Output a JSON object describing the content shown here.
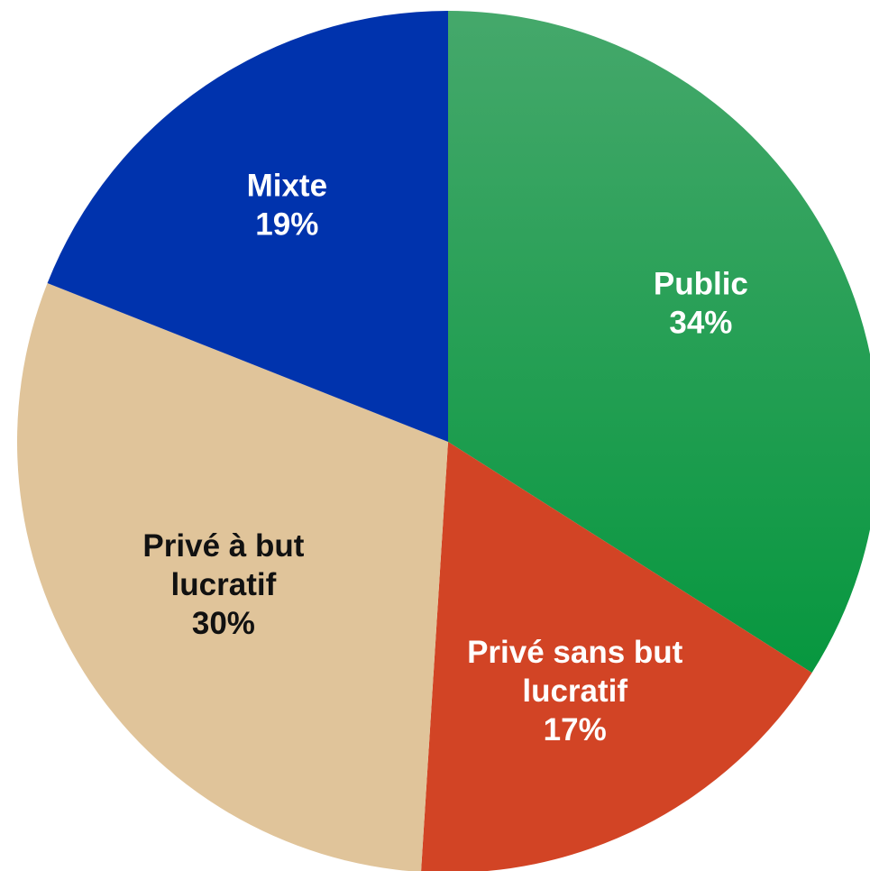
{
  "chart_data": {
    "type": "pie",
    "title": "",
    "slices": [
      {
        "label_lines": [
          "Public"
        ],
        "value": 34,
        "pct": "34%",
        "color": "#1e9b4a",
        "label_color": "#ffffff"
      },
      {
        "label_lines": [
          "Privé sans but",
          "lucratif"
        ],
        "value": 17,
        "pct": "17%",
        "color": "#d24425",
        "label_color": "#ffffff"
      },
      {
        "label_lines": [
          "Privé à but",
          "lucratif"
        ],
        "value": 30,
        "pct": "30%",
        "color": "#e0c49a",
        "label_color": "#111111"
      },
      {
        "label_lines": [
          "Mixte"
        ],
        "value": 19,
        "pct": "19%",
        "color": "#0033ad",
        "label_color": "#ffffff"
      }
    ],
    "start": "12 o'clock",
    "direction": "clockwise",
    "legend": "none"
  }
}
